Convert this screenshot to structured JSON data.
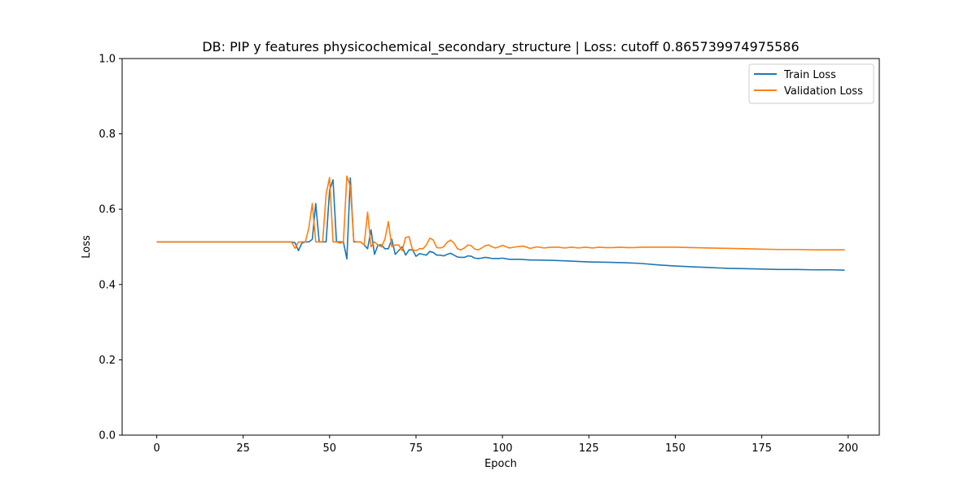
{
  "chart_data": {
    "type": "line",
    "title": "DB: PIP y features physicochemical_secondary_structure | Loss: cutoff 0.865739974975586",
    "xlabel": "Epoch",
    "ylabel": "Loss",
    "xlim": [
      -10,
      209
    ],
    "ylim": [
      0,
      1
    ],
    "xticks": [
      0,
      25,
      50,
      75,
      100,
      125,
      150,
      175,
      200
    ],
    "yticks": [
      0.0,
      0.2,
      0.4,
      0.6,
      0.8,
      1.0
    ],
    "xtick_labels": [
      "0",
      "25",
      "50",
      "75",
      "100",
      "125",
      "150",
      "175",
      "200"
    ],
    "ytick_labels": [
      "0.0",
      "0.2",
      "0.4",
      "0.6",
      "0.8",
      "1.0"
    ],
    "grid": false,
    "legend_position": "top-right",
    "series": [
      {
        "name": "Train Loss",
        "color": "#1f77b4",
        "points": [
          [
            0,
            0.513
          ],
          [
            39,
            0.513
          ],
          [
            40,
            0.511
          ],
          [
            41,
            0.49
          ],
          [
            42,
            0.51
          ],
          [
            43,
            0.513
          ],
          [
            44,
            0.513
          ],
          [
            45,
            0.52
          ],
          [
            46,
            0.615
          ],
          [
            47,
            0.513
          ],
          [
            48,
            0.513
          ],
          [
            49,
            0.513
          ],
          [
            50,
            0.65
          ],
          [
            51,
            0.678
          ],
          [
            52,
            0.513
          ],
          [
            53,
            0.513
          ],
          [
            54,
            0.513
          ],
          [
            55,
            0.468
          ],
          [
            56,
            0.683
          ],
          [
            57,
            0.513
          ],
          [
            58,
            0.513
          ],
          [
            59,
            0.513
          ],
          [
            60,
            0.505
          ],
          [
            61,
            0.495
          ],
          [
            62,
            0.545
          ],
          [
            63,
            0.48
          ],
          [
            64,
            0.505
          ],
          [
            65,
            0.505
          ],
          [
            66,
            0.495
          ],
          [
            67,
            0.495
          ],
          [
            68,
            0.52
          ],
          [
            69,
            0.48
          ],
          [
            70,
            0.49
          ],
          [
            71,
            0.5
          ],
          [
            72,
            0.478
          ],
          [
            73,
            0.492
          ],
          [
            74,
            0.492
          ],
          [
            75,
            0.475
          ],
          [
            76,
            0.482
          ],
          [
            77,
            0.48
          ],
          [
            78,
            0.478
          ],
          [
            79,
            0.488
          ],
          [
            80,
            0.485
          ],
          [
            81,
            0.478
          ],
          [
            82,
            0.478
          ],
          [
            83,
            0.476
          ],
          [
            84,
            0.48
          ],
          [
            85,
            0.483
          ],
          [
            86,
            0.478
          ],
          [
            87,
            0.473
          ],
          [
            88,
            0.472
          ],
          [
            89,
            0.472
          ],
          [
            90,
            0.476
          ],
          [
            91,
            0.475
          ],
          [
            92,
            0.47
          ],
          [
            93,
            0.469
          ],
          [
            94,
            0.47
          ],
          [
            95,
            0.472
          ],
          [
            96,
            0.471
          ],
          [
            97,
            0.469
          ],
          [
            98,
            0.469
          ],
          [
            99,
            0.469
          ],
          [
            100,
            0.47
          ],
          [
            102,
            0.467
          ],
          [
            105,
            0.467
          ],
          [
            108,
            0.465
          ],
          [
            110,
            0.465
          ],
          [
            115,
            0.464
          ],
          [
            120,
            0.462
          ],
          [
            125,
            0.46
          ],
          [
            130,
            0.459
          ],
          [
            135,
            0.458
          ],
          [
            140,
            0.456
          ],
          [
            145,
            0.452
          ],
          [
            150,
            0.449
          ],
          [
            155,
            0.447
          ],
          [
            160,
            0.445
          ],
          [
            165,
            0.443
          ],
          [
            170,
            0.442
          ],
          [
            175,
            0.441
          ],
          [
            180,
            0.44
          ],
          [
            185,
            0.44
          ],
          [
            190,
            0.439
          ],
          [
            195,
            0.439
          ],
          [
            199,
            0.438
          ]
        ]
      },
      {
        "name": "Validation Loss",
        "color": "#ff7f0e",
        "points": [
          [
            0,
            0.513
          ],
          [
            39,
            0.513
          ],
          [
            40,
            0.496
          ],
          [
            41,
            0.513
          ],
          [
            42,
            0.513
          ],
          [
            43,
            0.513
          ],
          [
            44,
            0.55
          ],
          [
            45,
            0.615
          ],
          [
            46,
            0.513
          ],
          [
            47,
            0.513
          ],
          [
            48,
            0.513
          ],
          [
            49,
            0.64
          ],
          [
            50,
            0.684
          ],
          [
            51,
            0.513
          ],
          [
            52,
            0.513
          ],
          [
            53,
            0.51
          ],
          [
            54,
            0.513
          ],
          [
            55,
            0.688
          ],
          [
            56,
            0.66
          ],
          [
            57,
            0.515
          ],
          [
            58,
            0.513
          ],
          [
            59,
            0.513
          ],
          [
            60,
            0.505
          ],
          [
            61,
            0.592
          ],
          [
            62,
            0.5
          ],
          [
            63,
            0.513
          ],
          [
            64,
            0.505
          ],
          [
            65,
            0.5
          ],
          [
            66,
            0.52
          ],
          [
            67,
            0.567
          ],
          [
            68,
            0.5
          ],
          [
            69,
            0.505
          ],
          [
            70,
            0.505
          ],
          [
            71,
            0.49
          ],
          [
            72,
            0.525
          ],
          [
            73,
            0.527
          ],
          [
            74,
            0.492
          ],
          [
            75,
            0.49
          ],
          [
            76,
            0.495
          ],
          [
            77,
            0.495
          ],
          [
            78,
            0.505
          ],
          [
            79,
            0.523
          ],
          [
            80,
            0.518
          ],
          [
            81,
            0.498
          ],
          [
            82,
            0.497
          ],
          [
            83,
            0.5
          ],
          [
            84,
            0.512
          ],
          [
            85,
            0.518
          ],
          [
            86,
            0.51
          ],
          [
            87,
            0.495
          ],
          [
            88,
            0.492
          ],
          [
            89,
            0.497
          ],
          [
            90,
            0.505
          ],
          [
            91,
            0.503
          ],
          [
            92,
            0.494
          ],
          [
            93,
            0.492
          ],
          [
            94,
            0.497
          ],
          [
            95,
            0.503
          ],
          [
            96,
            0.505
          ],
          [
            97,
            0.5
          ],
          [
            98,
            0.497
          ],
          [
            99,
            0.5
          ],
          [
            100,
            0.504
          ],
          [
            102,
            0.497
          ],
          [
            104,
            0.5
          ],
          [
            106,
            0.502
          ],
          [
            108,
            0.496
          ],
          [
            110,
            0.5
          ],
          [
            112,
            0.497
          ],
          [
            114,
            0.499
          ],
          [
            116,
            0.499
          ],
          [
            118,
            0.497
          ],
          [
            120,
            0.499
          ],
          [
            122,
            0.497
          ],
          [
            124,
            0.499
          ],
          [
            126,
            0.497
          ],
          [
            128,
            0.499
          ],
          [
            130,
            0.498
          ],
          [
            132,
            0.498
          ],
          [
            134,
            0.499
          ],
          [
            136,
            0.498
          ],
          [
            138,
            0.498
          ],
          [
            140,
            0.499
          ],
          [
            145,
            0.499
          ],
          [
            150,
            0.499
          ],
          [
            155,
            0.498
          ],
          [
            160,
            0.497
          ],
          [
            165,
            0.496
          ],
          [
            170,
            0.495
          ],
          [
            175,
            0.494
          ],
          [
            180,
            0.493
          ],
          [
            185,
            0.493
          ],
          [
            190,
            0.492
          ],
          [
            195,
            0.492
          ],
          [
            199,
            0.492
          ]
        ]
      }
    ]
  }
}
